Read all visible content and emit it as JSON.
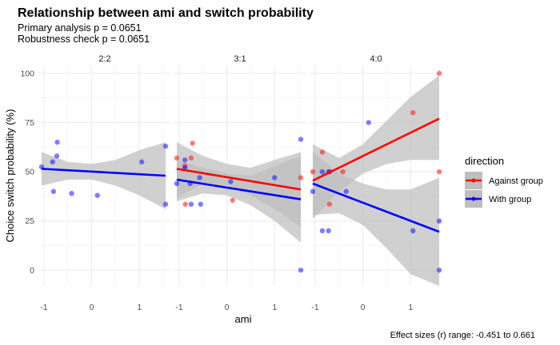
{
  "chart_data": {
    "type": "scatter",
    "title": "Relationship between ami and switch probability",
    "subtitle_lines": [
      "Primary analysis p = 0.0651",
      "Robustness check p = 0.0651"
    ],
    "xlabel": "ami",
    "ylabel": "Choice switch probability (%)",
    "caption": "Effect sizes (r) range: -0.451 to 0.661",
    "xlim": [
      -1.1,
      1.65
    ],
    "ylim": [
      -8,
      104
    ],
    "x_ticks": [
      -1,
      0,
      1
    ],
    "y_ticks": [
      0,
      25,
      50,
      75,
      100
    ],
    "grid": true,
    "legend": {
      "title": "direction",
      "position": "right",
      "entries": [
        {
          "label": "Against group",
          "color": "#ff0000"
        },
        {
          "label": "With group",
          "color": "#0000ff"
        }
      ]
    },
    "colors": {
      "against": "#ff0000",
      "with": "#0000ff",
      "band": "#bebebe",
      "grid": "#ebebeb"
    },
    "panels": [
      {
        "label": "2:2",
        "series": [
          {
            "name": "With group",
            "color": "#0000ff",
            "points": [
              [
                -1.05,
                52.5
              ],
              [
                -0.82,
                55
              ],
              [
                -0.72,
                65
              ],
              [
                -0.73,
                58
              ],
              [
                -0.8,
                40
              ],
              [
                -0.42,
                39
              ],
              [
                0.12,
                38
              ],
              [
                1.05,
                55
              ],
              [
                1.55,
                63
              ],
              [
                1.55,
                33.5
              ]
            ],
            "fit": {
              "x": [
                -1.05,
                1.55
              ],
              "y": [
                51.5,
                48
              ],
              "lower": [
                [
                  -1.05,
                  43
                ],
                [
                  -0.5,
                  46
                ],
                [
                  0,
                  46
                ],
                [
                  0.5,
                  43
                ],
                [
                  1.0,
                  38
                ],
                [
                  1.55,
                  31
                ]
              ],
              "upper": [
                [
                  -1.05,
                  60
                ],
                [
                  -0.5,
                  55
                ],
                [
                  0,
                  54
                ],
                [
                  0.5,
                  56
                ],
                [
                  1.0,
                  61
                ],
                [
                  1.55,
                  65
                ]
              ]
            }
          }
        ]
      },
      {
        "label": "3:1",
        "series": [
          {
            "name": "Against group",
            "color": "#ff0000",
            "points": [
              [
                -1.05,
                57
              ],
              [
                -0.88,
                53
              ],
              [
                -0.75,
                57
              ],
              [
                -0.72,
                64.5
              ],
              [
                -0.87,
                33.5
              ],
              [
                0.12,
                35.5
              ],
              [
                1.55,
                47
              ]
            ],
            "fit": {
              "x": [
                -1.05,
                1.55
              ],
              "y": [
                51.5,
                41
              ],
              "lower": [
                [
                  -1.05,
                  37
                ],
                [
                  -0.5,
                  44
                ],
                [
                  0,
                  43
                ],
                [
                  0.5,
                  38
                ],
                [
                  1.0,
                  31
                ],
                [
                  1.55,
                  22
                ]
              ],
              "upper": [
                [
                  -1.05,
                  65
                ],
                [
                  -0.5,
                  58
                ],
                [
                  0,
                  54
                ],
                [
                  0.5,
                  52
                ],
                [
                  1.0,
                  56
                ],
                [
                  1.55,
                  60
                ]
              ]
            }
          },
          {
            "name": "With group",
            "color": "#0000ff",
            "points": [
              [
                -1.05,
                44
              ],
              [
                -0.88,
                56
              ],
              [
                -0.88,
                52
              ],
              [
                -0.77,
                44
              ],
              [
                -0.75,
                33.5
              ],
              [
                -0.57,
                47
              ],
              [
                -0.55,
                33.5
              ],
              [
                0.08,
                45
              ],
              [
                1.0,
                47
              ],
              [
                1.55,
                66.5
              ],
              [
                1.55,
                0
              ]
            ],
            "fit": {
              "x": [
                -1.05,
                1.55
              ],
              "y": [
                46,
                36
              ],
              "lower": [
                [
                  -1.05,
                  35
                ],
                [
                  -0.5,
                  39
                ],
                [
                  0,
                  38
                ],
                [
                  0.5,
                  33
                ],
                [
                  1.0,
                  25
                ],
                [
                  1.55,
                  14
                ]
              ],
              "upper": [
                [
                  -1.05,
                  56
                ],
                [
                  -0.5,
                  52
                ],
                [
                  0,
                  49
                ],
                [
                  0.5,
                  48
                ],
                [
                  1.0,
                  53
                ],
                [
                  1.55,
                  58
                ]
              ]
            }
          }
        ]
      },
      {
        "label": "4:0",
        "series": [
          {
            "name": "Against group",
            "color": "#ff0000",
            "points": [
              [
                -1.05,
                50
              ],
              [
                -0.85,
                60
              ],
              [
                -0.72,
                50
              ],
              [
                -0.7,
                33.5
              ],
              [
                -0.42,
                50
              ],
              [
                1.05,
                80
              ],
              [
                1.6,
                100
              ],
              [
                1.6,
                50
              ]
            ],
            "fit": {
              "x": [
                -1.05,
                1.6
              ],
              "y": [
                45.5,
                77
              ],
              "lower": [
                [
                  -1.05,
                  26
                ],
                [
                  -0.5,
                  40
                ],
                [
                  0,
                  49
                ],
                [
                  0.5,
                  54
                ],
                [
                  1.0,
                  56
                ],
                [
                  1.6,
                  56
                ]
              ],
              "upper": [
                [
                  -1.05,
                  64
                ],
                [
                  -0.5,
                  57
                ],
                [
                  0,
                  64
                ],
                [
                  0.5,
                  76
                ],
                [
                  1.0,
                  88
                ],
                [
                  1.6,
                  99
                ]
              ]
            }
          },
          {
            "name": "With group",
            "color": "#0000ff",
            "points": [
              [
                -1.05,
                40
              ],
              [
                -0.85,
                50
              ],
              [
                -0.7,
                50
              ],
              [
                -0.85,
                20
              ],
              [
                -0.72,
                20
              ],
              [
                -0.35,
                40
              ],
              [
                0.12,
                75
              ],
              [
                1.05,
                20
              ],
              [
                1.6,
                25
              ],
              [
                1.6,
                0
              ]
            ],
            "fit": {
              "x": [
                -1.05,
                1.6
              ],
              "y": [
                44,
                19.5
              ],
              "lower": [
                [
                  -1.05,
                  28
                ],
                [
                  -0.5,
                  29
                ],
                [
                  0,
                  23
                ],
                [
                  0.5,
                  11
                ],
                [
                  1.0,
                  -2
                ],
                [
                  1.6,
                  -8
                ]
              ],
              "upper": [
                [
                  -1.05,
                  60
                ],
                [
                  -0.5,
                  49
                ],
                [
                  0,
                  44
                ],
                [
                  0.5,
                  41
                ],
                [
                  1.0,
                  41
                ],
                [
                  1.6,
                  47
                ]
              ]
            }
          }
        ]
      }
    ]
  }
}
